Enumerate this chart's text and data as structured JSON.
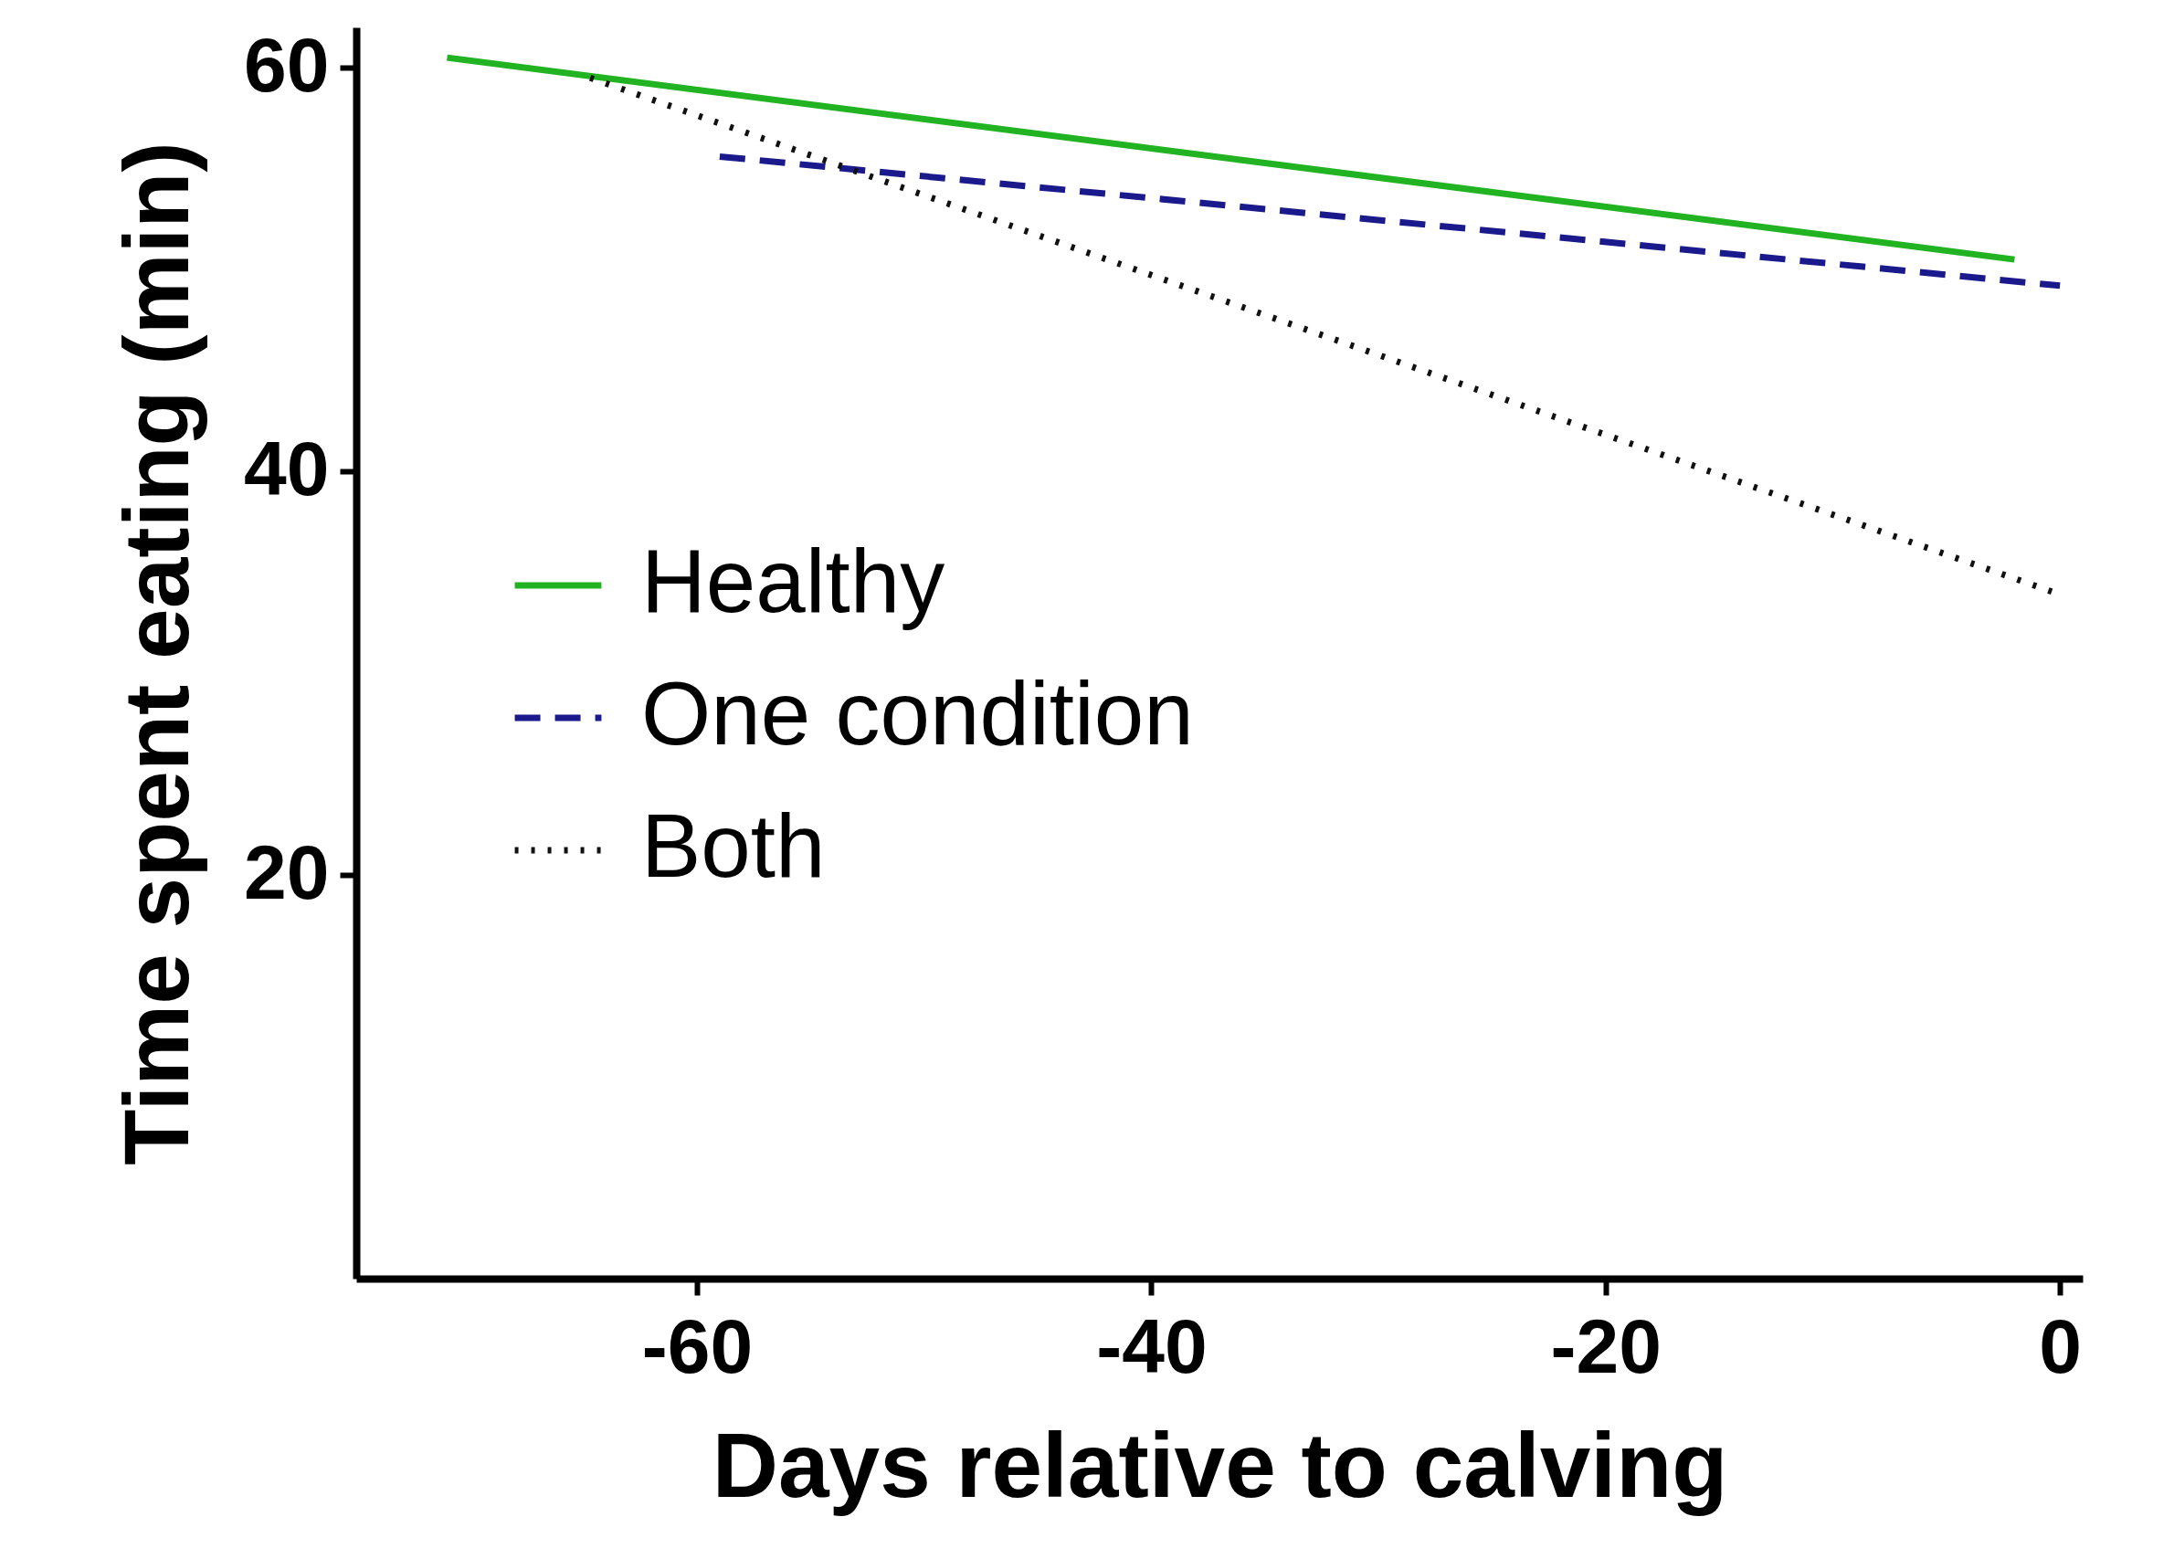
{
  "chart_data": {
    "type": "line",
    "xlabel": "Days relative to calving",
    "ylabel": "Time spent eating (min)",
    "xlim": [
      -75,
      1
    ],
    "xticks": [
      -60,
      -40,
      -20,
      0
    ],
    "ylim": [
      0,
      62
    ],
    "yticks": [
      20,
      40,
      60
    ],
    "grid": false,
    "legend": "left",
    "marker": "none",
    "series": [
      {
        "name": "Healthy",
        "color": "#22b322",
        "line_style": "solid",
        "x": [
          -71,
          -2
        ],
        "values": [
          60.5,
          50.5
        ]
      },
      {
        "name": "One condition",
        "color": "#1a1a8c",
        "line_style": "dashed",
        "x": [
          -59,
          0
        ],
        "values": [
          55.6,
          49.2
        ]
      },
      {
        "name": "Both",
        "color": "#111111",
        "line_style": "dotted",
        "x": [
          -64.7,
          0
        ],
        "values": [
          59.5,
          33.9
        ]
      }
    ]
  }
}
